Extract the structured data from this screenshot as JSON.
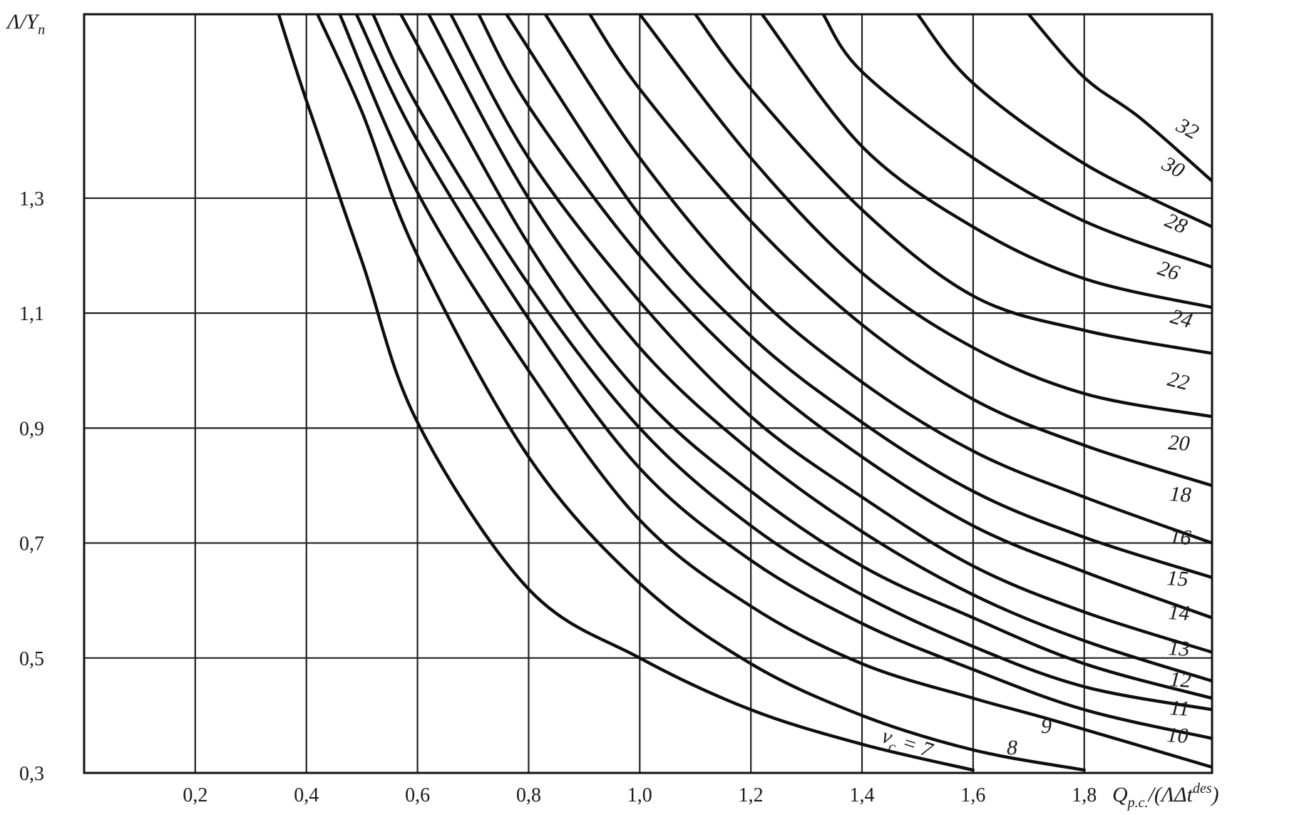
{
  "chart_data": {
    "type": "line",
    "title": "",
    "xlabel": "Q_{p.c.}/(ΛΔt^{des})",
    "ylabel": "Λ/Y_n",
    "xlim": [
      0.0,
      2.03
    ],
    "ylim": [
      0.3,
      1.62
    ],
    "x_gridlines": [
      0.2,
      0.4,
      0.6,
      0.8,
      1.0,
      1.2,
      1.4,
      1.6,
      1.8
    ],
    "y_gridlines": [
      0.5,
      0.7,
      0.9,
      1.1,
      1.3
    ],
    "x_ticks": [
      "0,2",
      "0,4",
      "0,6",
      "0,8",
      "1,0",
      "1,2",
      "1,4",
      "1,6",
      "1,8"
    ],
    "y_ticks": [
      "0,3",
      "0,5",
      "0,7",
      "0,9",
      "1,1",
      "1,3"
    ],
    "grid": true,
    "legend": "inline curve labels",
    "curve_label_prefix": "ν_c =",
    "series": [
      {
        "name": "7",
        "label": "ν_c = 7",
        "points": [
          [
            0.35,
            1.62
          ],
          [
            0.4,
            1.47
          ],
          [
            0.5,
            1.19
          ],
          [
            0.6,
            0.91
          ],
          [
            0.8,
            0.62
          ],
          [
            1.0,
            0.5
          ],
          [
            1.2,
            0.41
          ],
          [
            1.4,
            0.35
          ],
          [
            1.6,
            0.305
          ]
        ]
      },
      {
        "name": "8",
        "label": "8",
        "points": [
          [
            0.42,
            1.62
          ],
          [
            0.5,
            1.45
          ],
          [
            0.6,
            1.2
          ],
          [
            0.8,
            0.85
          ],
          [
            1.0,
            0.63
          ],
          [
            1.2,
            0.49
          ],
          [
            1.4,
            0.4
          ],
          [
            1.6,
            0.34
          ],
          [
            1.8,
            0.305
          ]
        ]
      },
      {
        "name": "9",
        "label": "9",
        "points": [
          [
            0.46,
            1.62
          ],
          [
            0.6,
            1.31
          ],
          [
            0.8,
            1.0
          ],
          [
            1.0,
            0.74
          ],
          [
            1.2,
            0.59
          ],
          [
            1.4,
            0.49
          ],
          [
            1.6,
            0.43
          ],
          [
            1.75,
            0.39
          ],
          [
            2.03,
            0.31
          ]
        ]
      },
      {
        "name": "10",
        "label": "10",
        "points": [
          [
            0.49,
            1.62
          ],
          [
            0.6,
            1.4
          ],
          [
            0.8,
            1.09
          ],
          [
            1.0,
            0.83
          ],
          [
            1.2,
            0.67
          ],
          [
            1.4,
            0.56
          ],
          [
            1.6,
            0.48
          ],
          [
            1.8,
            0.41
          ],
          [
            2.03,
            0.36
          ]
        ]
      },
      {
        "name": "11",
        "label": "11",
        "points": [
          [
            0.52,
            1.62
          ],
          [
            0.6,
            1.46
          ],
          [
            0.8,
            1.15
          ],
          [
            1.0,
            0.9
          ],
          [
            1.2,
            0.73
          ],
          [
            1.4,
            0.61
          ],
          [
            1.6,
            0.52
          ],
          [
            1.8,
            0.45
          ],
          [
            2.03,
            0.41
          ]
        ]
      },
      {
        "name": "12",
        "label": "12",
        "points": [
          [
            0.57,
            1.62
          ],
          [
            0.8,
            1.22
          ],
          [
            1.0,
            0.96
          ],
          [
            1.2,
            0.79
          ],
          [
            1.4,
            0.66
          ],
          [
            1.6,
            0.57
          ],
          [
            1.8,
            0.49
          ],
          [
            2.03,
            0.43
          ]
        ]
      },
      {
        "name": "13",
        "label": "13",
        "points": [
          [
            0.62,
            1.62
          ],
          [
            0.8,
            1.3
          ],
          [
            1.0,
            1.04
          ],
          [
            1.2,
            0.86
          ],
          [
            1.4,
            0.72
          ],
          [
            1.6,
            0.61
          ],
          [
            1.8,
            0.53
          ],
          [
            2.03,
            0.46
          ]
        ]
      },
      {
        "name": "14",
        "label": "14",
        "points": [
          [
            0.66,
            1.62
          ],
          [
            0.8,
            1.37
          ],
          [
            1.0,
            1.12
          ],
          [
            1.2,
            0.92
          ],
          [
            1.4,
            0.78
          ],
          [
            1.6,
            0.66
          ],
          [
            1.8,
            0.58
          ],
          [
            2.03,
            0.51
          ]
        ]
      },
      {
        "name": "15",
        "label": "15",
        "points": [
          [
            0.71,
            1.62
          ],
          [
            0.8,
            1.46
          ],
          [
            1.0,
            1.2
          ],
          [
            1.2,
            1.0
          ],
          [
            1.4,
            0.85
          ],
          [
            1.6,
            0.73
          ],
          [
            1.8,
            0.65
          ],
          [
            2.03,
            0.57
          ]
        ]
      },
      {
        "name": "16",
        "label": "16",
        "points": [
          [
            0.76,
            1.62
          ],
          [
            1.0,
            1.27
          ],
          [
            1.2,
            1.06
          ],
          [
            1.4,
            0.91
          ],
          [
            1.6,
            0.79
          ],
          [
            1.8,
            0.71
          ],
          [
            2.03,
            0.64
          ]
        ]
      },
      {
        "name": "18",
        "label": "18",
        "points": [
          [
            0.83,
            1.62
          ],
          [
            1.0,
            1.37
          ],
          [
            1.2,
            1.14
          ],
          [
            1.4,
            0.98
          ],
          [
            1.6,
            0.86
          ],
          [
            1.8,
            0.78
          ],
          [
            2.03,
            0.7
          ]
        ]
      },
      {
        "name": "20",
        "label": "20",
        "points": [
          [
            0.91,
            1.62
          ],
          [
            1.0,
            1.49
          ],
          [
            1.2,
            1.26
          ],
          [
            1.4,
            1.08
          ],
          [
            1.6,
            0.95
          ],
          [
            1.8,
            0.87
          ],
          [
            2.03,
            0.8
          ]
        ]
      },
      {
        "name": "22",
        "label": "22",
        "points": [
          [
            1.0,
            1.62
          ],
          [
            1.2,
            1.37
          ],
          [
            1.4,
            1.17
          ],
          [
            1.6,
            1.04
          ],
          [
            1.8,
            0.96
          ],
          [
            2.03,
            0.92
          ]
        ]
      },
      {
        "name": "24",
        "label": "24",
        "points": [
          [
            1.1,
            1.62
          ],
          [
            1.2,
            1.49
          ],
          [
            1.4,
            1.28
          ],
          [
            1.6,
            1.13
          ],
          [
            1.8,
            1.07
          ],
          [
            2.03,
            1.03
          ]
        ]
      },
      {
        "name": "26",
        "label": "26",
        "points": [
          [
            1.22,
            1.62
          ],
          [
            1.4,
            1.39
          ],
          [
            1.6,
            1.25
          ],
          [
            1.8,
            1.16
          ],
          [
            2.03,
            1.11
          ]
        ]
      },
      {
        "name": "28",
        "label": "28",
        "points": [
          [
            1.33,
            1.62
          ],
          [
            1.4,
            1.52
          ],
          [
            1.6,
            1.37
          ],
          [
            1.8,
            1.26
          ],
          [
            2.03,
            1.18
          ]
        ]
      },
      {
        "name": "30",
        "label": "30",
        "points": [
          [
            1.5,
            1.62
          ],
          [
            1.6,
            1.5
          ],
          [
            1.8,
            1.36
          ],
          [
            2.03,
            1.25
          ]
        ]
      },
      {
        "name": "32",
        "label": "32",
        "points": [
          [
            1.7,
            1.62
          ],
          [
            1.8,
            1.51
          ],
          [
            1.9,
            1.44
          ],
          [
            2.03,
            1.33
          ]
        ]
      }
    ]
  }
}
